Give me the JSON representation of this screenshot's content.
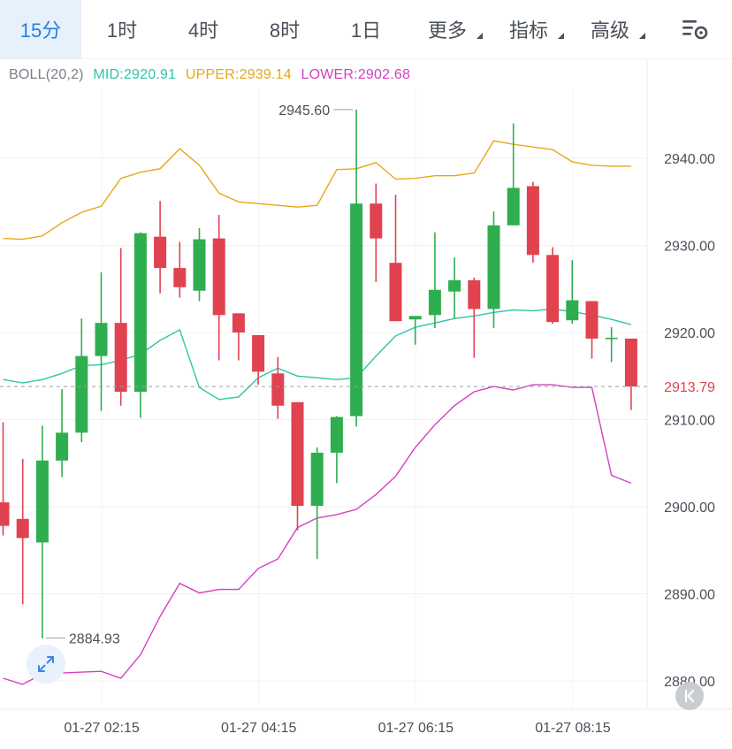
{
  "tabs": [
    {
      "label": "15分",
      "active": true,
      "dropdown": false
    },
    {
      "label": "1时",
      "active": false,
      "dropdown": false
    },
    {
      "label": "4时",
      "active": false,
      "dropdown": false
    },
    {
      "label": "8时",
      "active": false,
      "dropdown": false
    },
    {
      "label": "1日",
      "active": false,
      "dropdown": false
    },
    {
      "label": "更多",
      "active": false,
      "dropdown": true
    },
    {
      "label": "指标",
      "active": false,
      "dropdown": true
    },
    {
      "label": "高级",
      "active": false,
      "dropdown": true
    }
  ],
  "indicator": {
    "name": "BOLL(20,2)",
    "mid": "MID:2920.91",
    "upper": "UPPER:2939.14",
    "lower": "LOWER:2902.68"
  },
  "colors": {
    "up": "#2fae4f",
    "down": "#e0424f",
    "mid": "#2ec6a6",
    "upper": "#e6a817",
    "lower": "#d53fbf",
    "accent": "#2a7de1",
    "grid": "#eef0f3"
  },
  "icons": {
    "settings": "chart-settings-icon",
    "expand": "expand-arrows-icon",
    "back": "scroll-to-latest-icon"
  },
  "chart_data": {
    "type": "candlestick",
    "y_ticks": [
      "2940.00",
      "2930.00",
      "2920.00",
      "2910.00",
      "2900.00",
      "2890.00",
      "2880.00"
    ],
    "y_tick_values": [
      2940,
      2930,
      2920,
      2910,
      2900,
      2890,
      2880
    ],
    "ylim": [
      2877.1,
      2951.7
    ],
    "x_ticks": [
      {
        "label": "01-27 02:15",
        "index": 3
      },
      {
        "label": "01-27 04:15",
        "index": 11
      },
      {
        "label": "01-27 06:15",
        "index": 19
      },
      {
        "label": "01-27 08:15",
        "index": 27
      }
    ],
    "max_label": {
      "text": "2945.60",
      "value": 2945.6,
      "index": 18
    },
    "min_label": {
      "text": "2884.93",
      "value": 2884.93,
      "index": 2
    },
    "last_price": {
      "text": "2913.79",
      "value": 2913.79
    },
    "candles": [
      {
        "o": 2900.5,
        "h": 2909.7,
        "l": 2896.7,
        "c": 2897.8
      },
      {
        "o": 2898.6,
        "h": 2905.5,
        "l": 2888.8,
        "c": 2896.4
      },
      {
        "o": 2895.9,
        "h": 2909.3,
        "l": 2884.9,
        "c": 2905.3
      },
      {
        "o": 2905.3,
        "h": 2913.5,
        "l": 2903.4,
        "c": 2908.5
      },
      {
        "o": 2908.5,
        "h": 2921.6,
        "l": 2907.4,
        "c": 2917.3
      },
      {
        "o": 2917.3,
        "h": 2926.9,
        "l": 2911.0,
        "c": 2921.1
      },
      {
        "o": 2921.1,
        "h": 2929.7,
        "l": 2911.6,
        "c": 2913.2
      },
      {
        "o": 2913.2,
        "h": 2931.5,
        "l": 2910.2,
        "c": 2931.4
      },
      {
        "o": 2931.0,
        "h": 2935.1,
        "l": 2924.5,
        "c": 2927.4
      },
      {
        "o": 2927.4,
        "h": 2930.4,
        "l": 2924.0,
        "c": 2925.2
      },
      {
        "o": 2924.8,
        "h": 2932.0,
        "l": 2923.6,
        "c": 2930.7
      },
      {
        "o": 2930.8,
        "h": 2933.5,
        "l": 2916.8,
        "c": 2922.0
      },
      {
        "o": 2922.2,
        "h": 2922.2,
        "l": 2916.8,
        "c": 2920.0
      },
      {
        "o": 2919.7,
        "h": 2919.7,
        "l": 2914.0,
        "c": 2915.5
      },
      {
        "o": 2915.3,
        "h": 2917.2,
        "l": 2910.1,
        "c": 2911.6
      },
      {
        "o": 2912.0,
        "h": 2912.0,
        "l": 2897.3,
        "c": 2900.1
      },
      {
        "o": 2900.1,
        "h": 2906.8,
        "l": 2894.0,
        "c": 2906.2
      },
      {
        "o": 2906.2,
        "h": 2910.4,
        "l": 2902.7,
        "c": 2910.3
      },
      {
        "o": 2910.4,
        "h": 2945.6,
        "l": 2909.2,
        "c": 2934.8
      },
      {
        "o": 2934.8,
        "h": 2937.1,
        "l": 2925.8,
        "c": 2930.8
      },
      {
        "o": 2928.0,
        "h": 2935.8,
        "l": 2921.4,
        "c": 2921.3
      },
      {
        "o": 2921.5,
        "h": 2921.5,
        "l": 2918.6,
        "c": 2921.9
      },
      {
        "o": 2922.0,
        "h": 2931.5,
        "l": 2920.5,
        "c": 2924.9
      },
      {
        "o": 2924.7,
        "h": 2928.6,
        "l": 2921.6,
        "c": 2926.0
      },
      {
        "o": 2926.0,
        "h": 2926.3,
        "l": 2917.1,
        "c": 2922.7
      },
      {
        "o": 2922.7,
        "h": 2933.9,
        "l": 2920.5,
        "c": 2932.3
      },
      {
        "o": 2932.3,
        "h": 2944.0,
        "l": 2932.3,
        "c": 2936.6
      },
      {
        "o": 2936.8,
        "h": 2937.3,
        "l": 2928.0,
        "c": 2928.9
      },
      {
        "o": 2928.9,
        "h": 2929.8,
        "l": 2921.0,
        "c": 2921.2
      },
      {
        "o": 2921.4,
        "h": 2928.3,
        "l": 2921.0,
        "c": 2923.7
      },
      {
        "o": 2923.6,
        "h": 2923.6,
        "l": 2917.0,
        "c": 2919.3
      },
      {
        "o": 2919.4,
        "h": 2920.6,
        "l": 2916.6,
        "c": 2919.4
      },
      {
        "o": 2919.3,
        "h": 2919.3,
        "l": 2911.1,
        "c": 2913.8
      }
    ],
    "mid": [
      2914.6,
      2914.2,
      2914.6,
      2915.3,
      2916.2,
      2916.3,
      2916.8,
      2917.5,
      2919.1,
      2920.3,
      2913.7,
      2912.3,
      2912.6,
      2914.8,
      2915.9,
      2915.0,
      2914.8,
      2914.6,
      2914.8,
      2917.3,
      2919.6,
      2920.6,
      2921.1,
      2921.6,
      2921.9,
      2922.3,
      2922.6,
      2922.5,
      2922.7,
      2922.4,
      2922.0,
      2921.5,
      2920.9
    ],
    "upper": [
      2930.8,
      2930.7,
      2931.1,
      2932.6,
      2933.8,
      2934.5,
      2937.7,
      2938.4,
      2938.8,
      2941.1,
      2939.2,
      2936.0,
      2935.0,
      2934.8,
      2934.6,
      2934.4,
      2934.6,
      2938.7,
      2938.8,
      2939.5,
      2937.6,
      2937.7,
      2938.0,
      2938.0,
      2938.3,
      2942.0,
      2941.6,
      2941.3,
      2941.0,
      2939.6,
      2939.2,
      2939.1,
      2939.1
    ],
    "lower": [
      2880.3,
      2879.6,
      2880.8,
      2880.9,
      2881.0,
      2881.1,
      2880.3,
      2883.0,
      2887.4,
      2891.2,
      2890.1,
      2890.5,
      2890.5,
      2892.9,
      2894.0,
      2897.6,
      2898.7,
      2899.1,
      2899.7,
      2901.4,
      2903.5,
      2906.8,
      2909.4,
      2911.6,
      2913.2,
      2913.8,
      2913.4,
      2914.0,
      2914.0,
      2913.7,
      2913.7,
      2903.6,
      2902.7
    ]
  }
}
